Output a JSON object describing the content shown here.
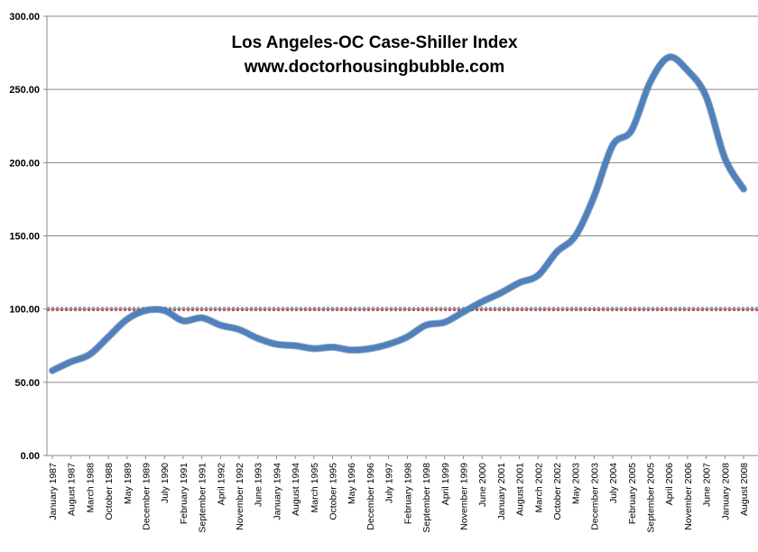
{
  "chart_data": {
    "type": "line",
    "title": "Los Angeles-OC Case-Shiller Index",
    "subtitle": "www.doctorhousingbubble.com",
    "xlabel": "",
    "ylabel": "",
    "ylim": [
      0,
      300
    ],
    "yticks": [
      "0.00",
      "50.00",
      "100.00",
      "150.00",
      "200.00",
      "250.00",
      "300.00"
    ],
    "grid": true,
    "legend": "none",
    "x_range": [
      "January 1987",
      "August 2008"
    ],
    "xtick_labels": [
      "January 1987",
      "August 1987",
      "March 1988",
      "October 1988",
      "May 1989",
      "December 1989",
      "July 1990",
      "February 1991",
      "September 1991",
      "April 1992",
      "November 1992",
      "June 1993",
      "January 1994",
      "August 1994",
      "March 1995",
      "October 1995",
      "May 1996",
      "December 1996",
      "July 1997",
      "February 1998",
      "September 1998",
      "April 1999",
      "November 1999",
      "June 2000",
      "January 2001",
      "August 2001",
      "March 2002",
      "October 2002",
      "May 2003",
      "December 2003",
      "July 2004",
      "February 2005",
      "September 2005",
      "April 2006",
      "November 2006",
      "June 2007",
      "January 2008",
      "August 2008"
    ],
    "series": [
      {
        "color": "#4F81BD",
        "points": [
          {
            "x": "January 1987",
            "y": 58
          },
          {
            "x": "August 1987",
            "y": 64
          },
          {
            "x": "March 1988",
            "y": 69
          },
          {
            "x": "October 1988",
            "y": 81
          },
          {
            "x": "May 1989",
            "y": 93
          },
          {
            "x": "December 1989",
            "y": 99
          },
          {
            "x": "July 1990",
            "y": 99
          },
          {
            "x": "February 1991",
            "y": 92
          },
          {
            "x": "September 1991",
            "y": 94
          },
          {
            "x": "April 1992",
            "y": 89
          },
          {
            "x": "November 1992",
            "y": 86
          },
          {
            "x": "June 1993",
            "y": 80
          },
          {
            "x": "January 1994",
            "y": 76
          },
          {
            "x": "August 1994",
            "y": 75
          },
          {
            "x": "March 1995",
            "y": 73
          },
          {
            "x": "October 1995",
            "y": 74
          },
          {
            "x": "May 1996",
            "y": 72
          },
          {
            "x": "December 1996",
            "y": 73
          },
          {
            "x": "July 1997",
            "y": 76
          },
          {
            "x": "February 1998",
            "y": 81
          },
          {
            "x": "September 1998",
            "y": 89
          },
          {
            "x": "April 1999",
            "y": 91
          },
          {
            "x": "November 1999",
            "y": 98
          },
          {
            "x": "June 2000",
            "y": 105
          },
          {
            "x": "January 2001",
            "y": 111
          },
          {
            "x": "August 2001",
            "y": 118
          },
          {
            "x": "March 2002",
            "y": 123
          },
          {
            "x": "October 2002",
            "y": 139
          },
          {
            "x": "May 2003",
            "y": 150
          },
          {
            "x": "December 2003",
            "y": 177
          },
          {
            "x": "July 2004",
            "y": 212
          },
          {
            "x": "February 2005",
            "y": 222
          },
          {
            "x": "September 2005",
            "y": 255
          },
          {
            "x": "April 2006",
            "y": 272
          },
          {
            "x": "November 2006",
            "y": 263
          },
          {
            "x": "June 2007",
            "y": 245
          },
          {
            "x": "January 2008",
            "y": 203
          },
          {
            "x": "August 2008",
            "y": 182
          }
        ]
      }
    ],
    "reference_line": {
      "y": 100,
      "color_a": "#C0504D",
      "color_b": "#8EA9C8"
    }
  }
}
